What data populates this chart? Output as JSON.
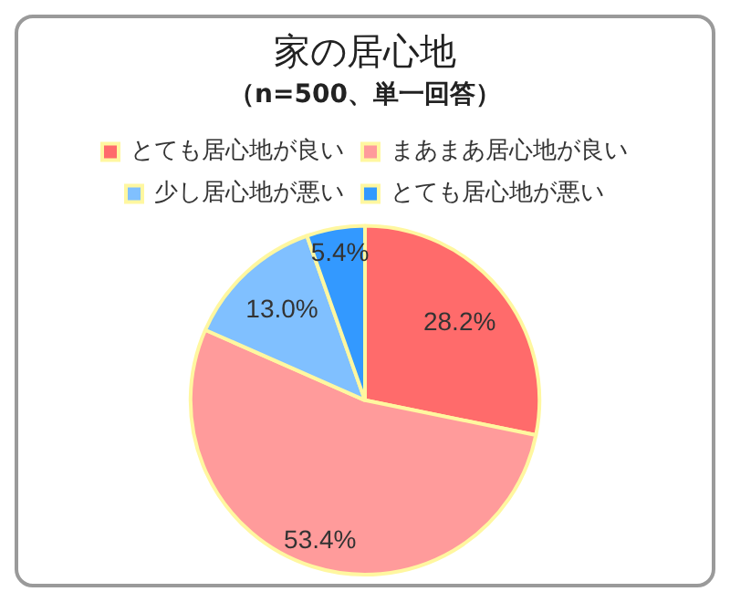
{
  "chart_data": {
    "type": "pie",
    "title": "家の居心地",
    "subtitle": "（n=500、単一回答）",
    "categories": [
      "とても居心地が良い",
      "まあまあ居心地が良い",
      "少し居心地が悪い",
      "とても居心地が悪い"
    ],
    "values": [
      28.2,
      53.4,
      13.0,
      5.4
    ],
    "colors": [
      "#ff6b6b",
      "#ff9b9b",
      "#80c0ff",
      "#3399ff"
    ],
    "value_labels": [
      "28.2%",
      "53.4%",
      "13.0%",
      "5.4%"
    ],
    "legend": "top"
  }
}
